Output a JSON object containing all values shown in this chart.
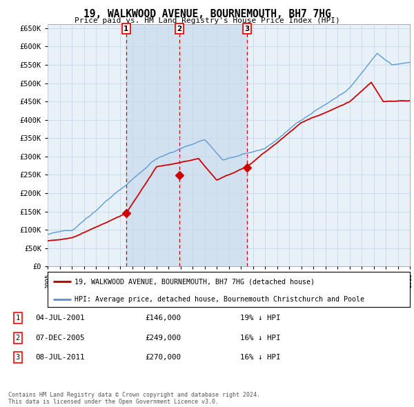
{
  "title": "19, WALKWOOD AVENUE, BOURNEMOUTH, BH7 7HG",
  "subtitle": "Price paid vs. HM Land Registry's House Price Index (HPI)",
  "ylim": [
    0,
    660000
  ],
  "yticks": [
    0,
    50000,
    100000,
    150000,
    200000,
    250000,
    300000,
    350000,
    400000,
    450000,
    500000,
    550000,
    600000,
    650000
  ],
  "ytick_labels": [
    "£0",
    "£50K",
    "£100K",
    "£150K",
    "£200K",
    "£250K",
    "£300K",
    "£350K",
    "£400K",
    "£450K",
    "£500K",
    "£550K",
    "£600K",
    "£650K"
  ],
  "sale_dates": [
    2001.5,
    2005.92,
    2011.5
  ],
  "sale_prices": [
    146000,
    249000,
    270000
  ],
  "sale_labels": [
    "1",
    "2",
    "3"
  ],
  "hpi_line_color": "#5b9bd5",
  "price_line_color": "#cc0000",
  "sale_marker_color": "#cc0000",
  "grid_color": "#c8d8e8",
  "chart_bg_color": "#e8f0f8",
  "shade_color": "#d0e0f0",
  "background_color": "#ffffff",
  "legend_entries": [
    "19, WALKWOOD AVENUE, BOURNEMOUTH, BH7 7HG (detached house)",
    "HPI: Average price, detached house, Bournemouth Christchurch and Poole"
  ],
  "table_rows": [
    {
      "label": "1",
      "date": "04-JUL-2001",
      "price": "£146,000",
      "hpi": "19% ↓ HPI"
    },
    {
      "label": "2",
      "date": "07-DEC-2005",
      "price": "£249,000",
      "hpi": "16% ↓ HPI"
    },
    {
      "label": "3",
      "date": "08-JUL-2011",
      "price": "£270,000",
      "hpi": "16% ↓ HPI"
    }
  ],
  "footnote": "Contains HM Land Registry data © Crown copyright and database right 2024.\nThis data is licensed under the Open Government Licence v3.0.",
  "xstart": 1995,
  "xend": 2025
}
